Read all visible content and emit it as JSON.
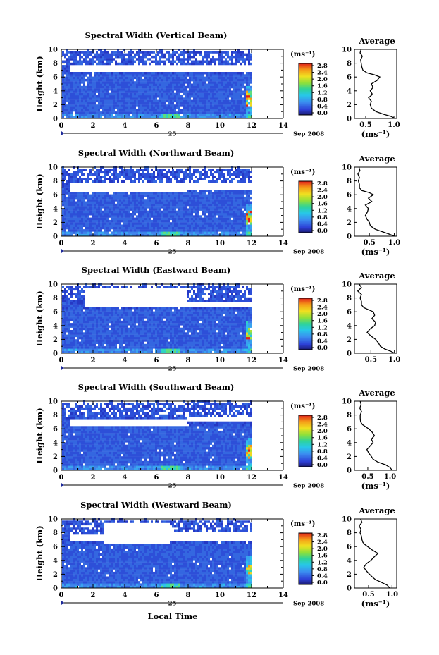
{
  "chart_data": {
    "type": "heatmap",
    "panels": [
      {
        "title": "Spectral Width (Vertical Beam)",
        "ylabel": "Height (km)",
        "ylim": [
          0,
          10
        ],
        "xlim": [
          0,
          14
        ],
        "x_ticks": [
          "0",
          "2",
          "4",
          "6",
          "8",
          "10",
          "12",
          "14"
        ],
        "y_ticks": [
          "0",
          "2",
          "4",
          "6",
          "8",
          "10"
        ],
        "date_day": "25",
        "date_month": "Sep 2008",
        "data_end_hour": 12,
        "gap": [
          [
            6.4,
            7.7,
            0.5,
            14
          ]
        ],
        "hot_heights": [
          2.2,
          3.4
        ],
        "colorbar": {
          "unit": "(ms⁻¹)",
          "ticks": [
            "0.0",
            "0.4",
            "0.8",
            "1.2",
            "1.6",
            "2.0",
            "2.4",
            "2.8"
          ]
        },
        "average": {
          "title": "Average",
          "xlabel": "(ms⁻¹)",
          "x_ticks": [
            "0.5",
            "1.0"
          ],
          "xlim": [
            0.3,
            1.05
          ],
          "y_ticks": [
            "0",
            "2",
            "4",
            "6",
            "8",
            "10"
          ],
          "profile": [
            [
              0.0,
              1.02
            ],
            [
              0.3,
              0.95
            ],
            [
              0.6,
              0.82
            ],
            [
              1.0,
              0.68
            ],
            [
              1.5,
              0.6
            ],
            [
              2.0,
              0.58
            ],
            [
              2.5,
              0.6
            ],
            [
              3.0,
              0.55
            ],
            [
              3.5,
              0.62
            ],
            [
              4.0,
              0.58
            ],
            [
              4.5,
              0.63
            ],
            [
              5.0,
              0.6
            ],
            [
              5.5,
              0.7
            ],
            [
              6.0,
              0.75
            ],
            [
              6.3,
              0.66
            ],
            [
              6.6,
              0.52
            ],
            [
              7.0,
              0.45
            ],
            [
              7.5,
              0.43
            ],
            [
              8.0,
              0.42
            ],
            [
              8.5,
              0.41
            ],
            [
              9.0,
              0.44
            ],
            [
              9.5,
              0.4
            ],
            [
              10.0,
              0.42
            ]
          ]
        }
      },
      {
        "title": "Spectral Width (Northward Beam)",
        "ylabel": "Height (km)",
        "ylim": [
          0,
          10
        ],
        "xlim": [
          0,
          14
        ],
        "x_ticks": [
          "0",
          "2",
          "4",
          "6",
          "8",
          "10",
          "12",
          "14"
        ],
        "y_ticks": [
          "0",
          "2",
          "4",
          "6",
          "8",
          "10"
        ],
        "date_day": "25",
        "date_month": "Sep 2008",
        "data_end_hour": 12,
        "gap": [
          [
            6.2,
            7.6,
            0.5,
            7.8
          ],
          [
            6.6,
            7.5,
            7.8,
            14
          ]
        ],
        "hot_heights": [
          2.2,
          3.3
        ],
        "colorbar": {
          "unit": "(ms⁻¹)",
          "ticks": [
            "0.0",
            "0.4",
            "0.8",
            "1.2",
            "1.6",
            "2.0",
            "2.4",
            "2.8"
          ]
        },
        "average": {
          "title": "Average",
          "xlabel": "(ms⁻¹)",
          "x_ticks": [
            "0.5",
            "1.0"
          ],
          "xlim": [
            0.2,
            1.05
          ],
          "y_ticks": [
            "0",
            "2",
            "4",
            "6",
            "8",
            "10"
          ],
          "profile": [
            [
              0.0,
              1.0
            ],
            [
              0.3,
              0.9
            ],
            [
              0.6,
              0.78
            ],
            [
              1.0,
              0.62
            ],
            [
              1.5,
              0.52
            ],
            [
              2.0,
              0.5
            ],
            [
              2.5,
              0.45
            ],
            [
              3.0,
              0.42
            ],
            [
              3.5,
              0.46
            ],
            [
              4.0,
              0.48
            ],
            [
              4.5,
              0.42
            ],
            [
              5.0,
              0.55
            ],
            [
              5.5,
              0.48
            ],
            [
              6.0,
              0.58
            ],
            [
              6.3,
              0.5
            ],
            [
              6.6,
              0.35
            ],
            [
              7.0,
              0.3
            ],
            [
              7.5,
              0.3
            ],
            [
              8.0,
              0.28
            ],
            [
              8.5,
              0.3
            ],
            [
              9.0,
              0.27
            ],
            [
              9.5,
              0.31
            ],
            [
              10.0,
              0.29
            ]
          ]
        }
      },
      {
        "title": "Spectral Width (Eastward Beam)",
        "ylabel": "Height (km)",
        "ylim": [
          0,
          10
        ],
        "xlim": [
          0,
          14
        ],
        "x_ticks": [
          "0",
          "2",
          "4",
          "6",
          "8",
          "10",
          "12",
          "14"
        ],
        "y_ticks": [
          "0",
          "2",
          "4",
          "6",
          "8",
          "10"
        ],
        "date_day": "25",
        "date_month": "Sep 2008",
        "data_end_hour": 12,
        "gap": [
          [
            6.4,
            9.2,
            1.4,
            7.8
          ],
          [
            6.6,
            7.4,
            7.8,
            14
          ]
        ],
        "hot_heights": [
          2.4,
          3.0
        ],
        "colorbar": {
          "unit": "(ms⁻¹)",
          "ticks": [
            "0.0",
            "0.4",
            "0.8",
            "1.2",
            "1.6",
            "2.0",
            "2.4",
            "2.8"
          ]
        },
        "average": {
          "title": "Average",
          "xlabel": "",
          "x_ticks": [
            "0.5",
            "1.0"
          ],
          "xlim": [
            0.15,
            1.05
          ],
          "y_ticks": [
            "0",
            "2",
            "4",
            "6",
            "8",
            "10"
          ],
          "profile": [
            [
              0.0,
              1.0
            ],
            [
              0.3,
              0.92
            ],
            [
              0.6,
              0.8
            ],
            [
              1.0,
              0.7
            ],
            [
              1.5,
              0.66
            ],
            [
              2.0,
              0.6
            ],
            [
              2.5,
              0.5
            ],
            [
              3.0,
              0.42
            ],
            [
              3.5,
              0.48
            ],
            [
              4.0,
              0.58
            ],
            [
              4.5,
              0.6
            ],
            [
              5.0,
              0.52
            ],
            [
              5.5,
              0.58
            ],
            [
              6.0,
              0.55
            ],
            [
              6.3,
              0.45
            ],
            [
              6.6,
              0.35
            ],
            [
              7.0,
              0.3
            ],
            [
              7.5,
              0.3
            ],
            [
              8.0,
              0.27
            ],
            [
              8.5,
              0.3
            ],
            [
              9.0,
              0.22
            ],
            [
              9.5,
              0.3
            ],
            [
              10.0,
              0.25
            ]
          ]
        }
      },
      {
        "title": "Spectral Width (Southward Beam)",
        "ylabel": "Height (km)",
        "ylim": [
          0,
          10
        ],
        "xlim": [
          0,
          14
        ],
        "x_ticks": [
          "0",
          "2",
          "4",
          "6",
          "8",
          "10",
          "12",
          "14"
        ],
        "y_ticks": [
          "0",
          "2",
          "4",
          "6",
          "8",
          "10"
        ],
        "date_day": "25",
        "date_month": "Sep 2008",
        "data_end_hour": 12,
        "gap": [
          [
            6.3,
            7.2,
            0.5,
            7.8
          ],
          [
            7.0,
            7.5,
            7.8,
            14
          ]
        ],
        "hot_heights": [
          2.2,
          3.1
        ],
        "colorbar": {
          "unit": "(ms⁻¹)",
          "ticks": [
            "0.0",
            "0.4",
            "0.8",
            "1.2",
            "1.6",
            "2.0",
            "2.4",
            "2.8"
          ]
        },
        "average": {
          "title": "Average",
          "xlabel": "(ms⁻¹)",
          "x_ticks": [
            "0.5",
            "1.0"
          ],
          "xlim": [
            0.2,
            1.15
          ],
          "y_ticks": [
            "0",
            "2",
            "4",
            "6",
            "8",
            "10"
          ],
          "profile": [
            [
              0.0,
              1.05
            ],
            [
              0.4,
              1.0
            ],
            [
              0.8,
              0.9
            ],
            [
              1.2,
              0.72
            ],
            [
              1.6,
              0.62
            ],
            [
              2.0,
              0.58
            ],
            [
              2.5,
              0.52
            ],
            [
              3.0,
              0.48
            ],
            [
              3.5,
              0.55
            ],
            [
              4.0,
              0.62
            ],
            [
              4.5,
              0.58
            ],
            [
              5.0,
              0.65
            ],
            [
              5.5,
              0.6
            ],
            [
              6.0,
              0.52
            ],
            [
              6.3,
              0.45
            ],
            [
              6.6,
              0.38
            ],
            [
              7.0,
              0.34
            ],
            [
              7.5,
              0.33
            ],
            [
              8.0,
              0.33
            ],
            [
              8.5,
              0.36
            ],
            [
              9.0,
              0.32
            ],
            [
              9.5,
              0.35
            ],
            [
              10.0,
              0.33
            ]
          ]
        }
      },
      {
        "title": "Spectral Width (Westward Beam)",
        "ylabel": "Height (km)",
        "ylim": [
          0,
          10
        ],
        "xlim": [
          0,
          14
        ],
        "x_ticks": [
          "0",
          "2",
          "4",
          "6",
          "8",
          "10",
          "12",
          "14"
        ],
        "y_ticks": [
          "0",
          "2",
          "4",
          "6",
          "8",
          "10"
        ],
        "date_day": "25",
        "date_month": "Sep 2008",
        "data_end_hour": 12,
        "gap": [
          [
            6.2,
            9.3,
            2.6,
            6.8
          ],
          [
            6.4,
            7.6,
            0.5,
            2.6
          ],
          [
            6.6,
            7.8,
            6.8,
            14
          ]
        ],
        "hot_heights": [
          2.4,
          2.9
        ],
        "colorbar": {
          "unit": "(ms⁻¹)",
          "ticks": [
            "0.0",
            "0.4",
            "0.8",
            "1.2",
            "1.6",
            "2.0",
            "2.4",
            "2.8"
          ]
        },
        "average": {
          "title": "Average",
          "xlabel": "(ms⁻¹)",
          "x_ticks": [
            "0.5",
            "1.0"
          ],
          "xlim": [
            0.2,
            1.1
          ],
          "y_ticks": [
            "0",
            "2",
            "4",
            "6",
            "8",
            "10"
          ],
          "profile": [
            [
              0.0,
              0.95
            ],
            [
              0.4,
              0.9
            ],
            [
              0.8,
              0.78
            ],
            [
              1.2,
              0.65
            ],
            [
              1.6,
              0.58
            ],
            [
              2.0,
              0.52
            ],
            [
              2.5,
              0.45
            ],
            [
              3.0,
              0.4
            ],
            [
              3.5,
              0.45
            ],
            [
              4.0,
              0.55
            ],
            [
              4.5,
              0.62
            ],
            [
              5.0,
              0.7
            ],
            [
              5.5,
              0.58
            ],
            [
              6.0,
              0.48
            ],
            [
              6.3,
              0.42
            ],
            [
              6.6,
              0.38
            ],
            [
              7.0,
              0.36
            ],
            [
              7.5,
              0.35
            ],
            [
              8.0,
              0.32
            ],
            [
              8.5,
              0.34
            ],
            [
              9.0,
              0.3
            ],
            [
              9.5,
              0.36
            ],
            [
              10.0,
              0.33
            ]
          ]
        }
      }
    ],
    "xlabel": "Local Time"
  }
}
